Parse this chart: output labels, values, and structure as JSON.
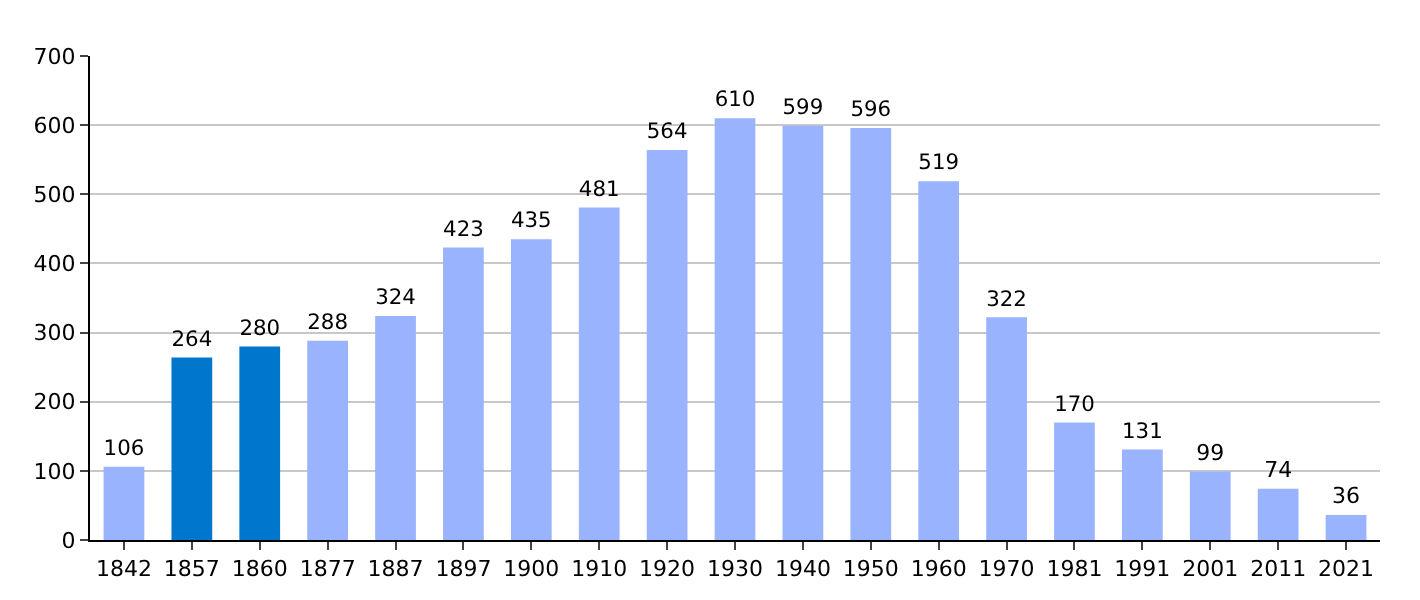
{
  "chart_data": {
    "type": "bar",
    "categories": [
      "1842",
      "1857",
      "1860",
      "1877",
      "1887",
      "1897",
      "1900",
      "1910",
      "1920",
      "1930",
      "1940",
      "1950",
      "1960",
      "1970",
      "1981",
      "1991",
      "2001",
      "2011",
      "2021"
    ],
    "values": [
      106,
      264,
      280,
      288,
      324,
      423,
      435,
      481,
      564,
      610,
      599,
      596,
      519,
      322,
      170,
      131,
      99,
      74,
      36
    ],
    "colors": [
      "#99b3ff",
      "#0077cc",
      "#0077cc",
      "#99b3ff",
      "#99b3ff",
      "#99b3ff",
      "#99b3ff",
      "#99b3ff",
      "#99b3ff",
      "#99b3ff",
      "#99b3ff",
      "#99b3ff",
      "#99b3ff",
      "#99b3ff",
      "#99b3ff",
      "#99b3ff",
      "#99b3ff",
      "#99b3ff",
      "#99b3ff"
    ],
    "ylim": [
      0,
      700
    ],
    "yticks": [
      0,
      100,
      200,
      300,
      400,
      500,
      600,
      700
    ],
    "grid": "y",
    "data_labels": true
  }
}
